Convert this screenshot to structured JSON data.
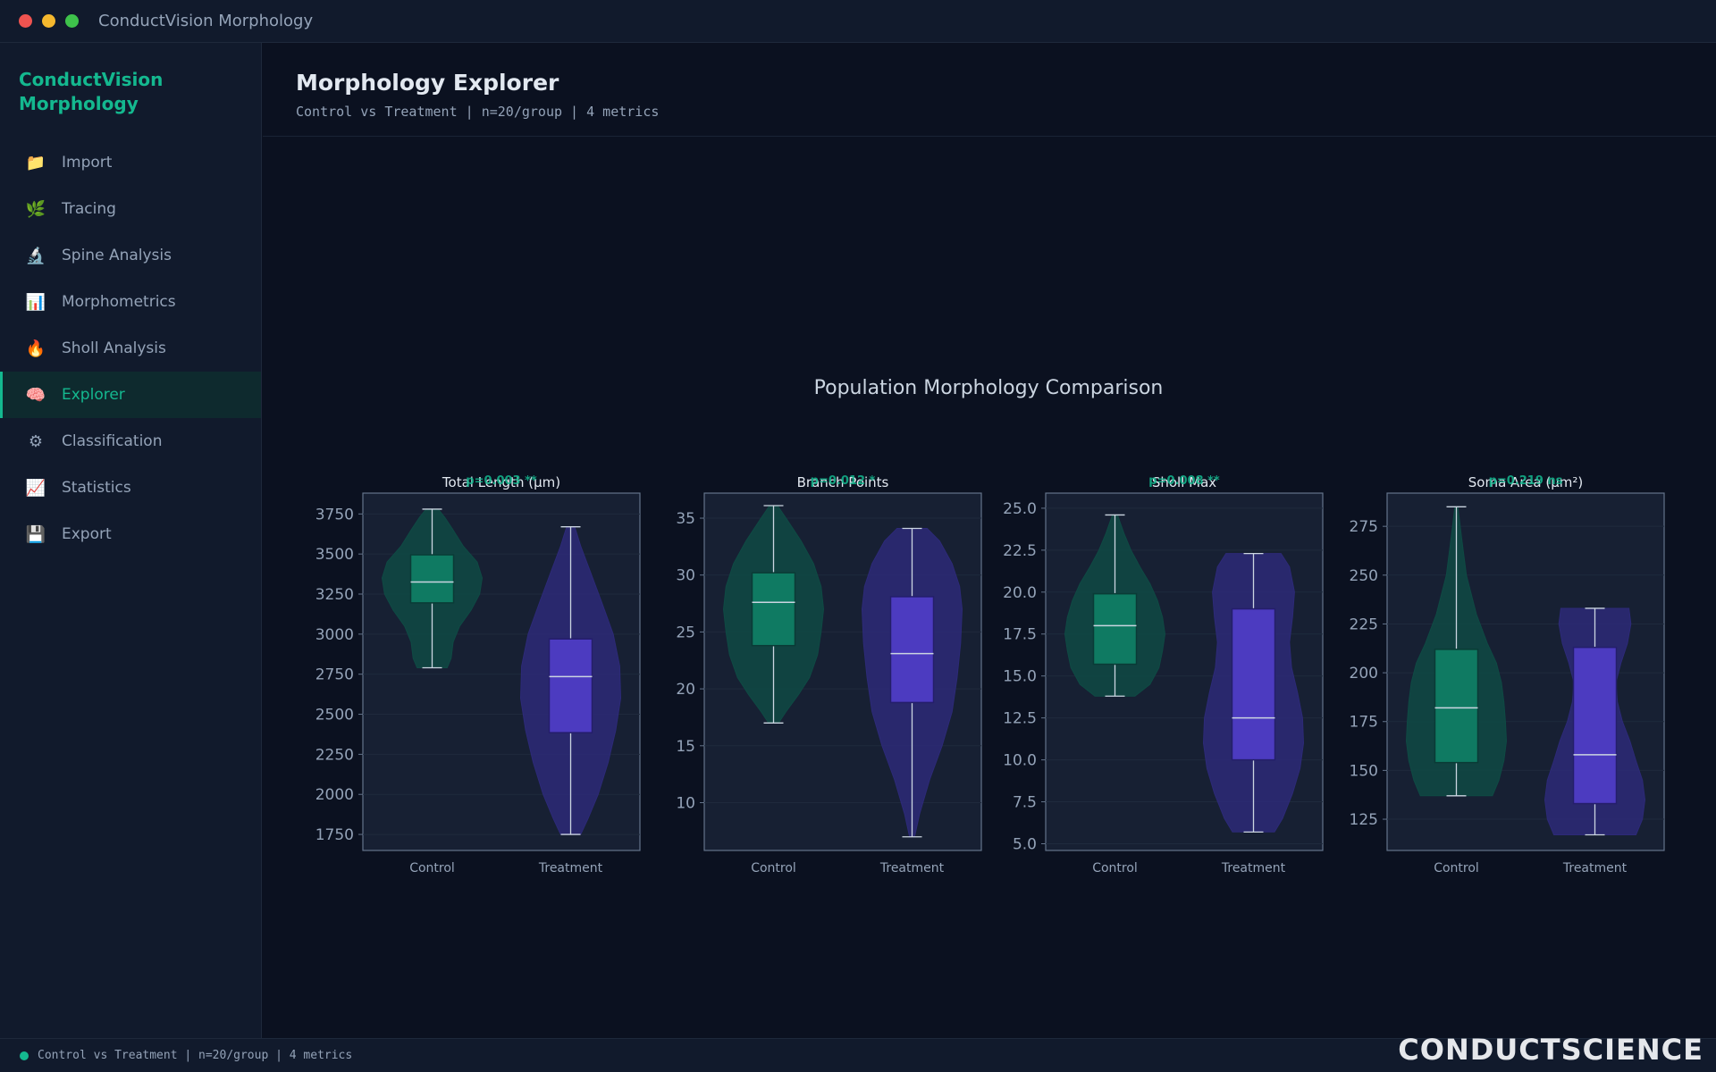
{
  "window": {
    "title": "ConductVision Morphology"
  },
  "sidebar": {
    "brand": "ConductVision Morphology",
    "items": [
      {
        "label": "Import",
        "icon": "folder-icon",
        "glyph": "📁",
        "active": false
      },
      {
        "label": "Tracing",
        "icon": "seedling-icon",
        "glyph": "🌿",
        "active": false
      },
      {
        "label": "Spine Analysis",
        "icon": "microscope-icon",
        "glyph": "🔬",
        "active": false
      },
      {
        "label": "Morphometrics",
        "icon": "bar-chart-icon",
        "glyph": "📊",
        "active": false
      },
      {
        "label": "Sholl Analysis",
        "icon": "fire-icon",
        "glyph": "🔥",
        "active": false
      },
      {
        "label": "Explorer",
        "icon": "brain-icon",
        "glyph": "🧠",
        "active": true
      },
      {
        "label": "Classification",
        "icon": "gear-icon",
        "glyph": "⚙",
        "active": false
      },
      {
        "label": "Statistics",
        "icon": "line-chart-icon",
        "glyph": "📈",
        "active": false
      },
      {
        "label": "Export",
        "icon": "floppy-disk-icon",
        "glyph": "💾",
        "active": false
      }
    ]
  },
  "header": {
    "title": "Morphology Explorer",
    "subtitle": "Control vs Treatment | n=20/group | 4 metrics"
  },
  "statusbar": {
    "text": "Control vs Treatment | n=20/group | 4 metrics"
  },
  "logo": {
    "text": "CONDUCTSCIENCE"
  },
  "colors": {
    "control": "#0f7a62",
    "control_violin": "#0f4a44",
    "treatment": "#4c3bc0",
    "treatment_violin": "#2d2a78",
    "accent": "#14b88f",
    "panel_bg": "#172033"
  },
  "chart_data": {
    "type": "violin",
    "title": "Population Morphology Comparison",
    "categories": [
      "Control",
      "Treatment"
    ],
    "panels": [
      {
        "title": "Total Length (μm)",
        "pvalue": "p=0.003 **",
        "ylim": [
          1650,
          3880
        ],
        "yticks": [
          1750,
          2000,
          2250,
          2500,
          2750,
          3000,
          3250,
          3500,
          3750
        ],
        "tick_labels": [
          "1750",
          "2000",
          "2250",
          "2500",
          "2750",
          "3000",
          "3250",
          "3500",
          "3750"
        ],
        "groups": [
          {
            "name": "Control",
            "min": 2790,
            "q1": 3195,
            "median": 3325,
            "q3": 3495,
            "max": 3780,
            "density": [
              [
                2790,
                0.3
              ],
              [
                2850,
                0.38
              ],
              [
                2950,
                0.42
              ],
              [
                3050,
                0.55
              ],
              [
                3150,
                0.78
              ],
              [
                3250,
                0.95
              ],
              [
                3350,
                1.0
              ],
              [
                3450,
                0.9
              ],
              [
                3550,
                0.62
              ],
              [
                3650,
                0.42
              ],
              [
                3730,
                0.25
              ],
              [
                3780,
                0.12
              ]
            ]
          },
          {
            "name": "Treatment",
            "min": 1750,
            "q1": 2385,
            "median": 2735,
            "q3": 2970,
            "max": 3670,
            "density": [
              [
                1750,
                0.2
              ],
              [
                1850,
                0.35
              ],
              [
                2000,
                0.55
              ],
              [
                2200,
                0.75
              ],
              [
                2400,
                0.9
              ],
              [
                2600,
                1.0
              ],
              [
                2800,
                0.98
              ],
              [
                3000,
                0.85
              ],
              [
                3200,
                0.62
              ],
              [
                3400,
                0.38
              ],
              [
                3550,
                0.2
              ],
              [
                3670,
                0.08
              ]
            ]
          }
        ]
      },
      {
        "title": "Branch Points",
        "pvalue": "p=0.012 *",
        "ylim": [
          5.8,
          37.2
        ],
        "yticks": [
          10,
          15,
          20,
          25,
          30,
          35
        ],
        "tick_labels": [
          "10",
          "15",
          "20",
          "25",
          "30",
          "35"
        ],
        "groups": [
          {
            "name": "Control",
            "min": 17,
            "q1": 23.8,
            "median": 27.6,
            "q3": 30.2,
            "max": 36.1,
            "density": [
              [
                17,
                0.1
              ],
              [
                18,
                0.25
              ],
              [
                19.5,
                0.5
              ],
              [
                21,
                0.72
              ],
              [
                23,
                0.88
              ],
              [
                25,
                0.95
              ],
              [
                27,
                1.0
              ],
              [
                29,
                0.95
              ],
              [
                31,
                0.8
              ],
              [
                33,
                0.55
              ],
              [
                35,
                0.25
              ],
              [
                36.1,
                0.08
              ]
            ]
          },
          {
            "name": "Treatment",
            "min": 7,
            "q1": 18.8,
            "median": 23.1,
            "q3": 28.1,
            "max": 34.1,
            "density": [
              [
                7,
                0.05
              ],
              [
                9,
                0.15
              ],
              [
                12,
                0.35
              ],
              [
                15,
                0.6
              ],
              [
                18,
                0.8
              ],
              [
                21,
                0.9
              ],
              [
                24,
                0.97
              ],
              [
                27,
                1.0
              ],
              [
                29,
                0.95
              ],
              [
                31,
                0.8
              ],
              [
                33,
                0.55
              ],
              [
                34.1,
                0.3
              ]
            ]
          }
        ]
      },
      {
        "title": "Sholl Max",
        "pvalue": "p=0.008 **",
        "ylim": [
          4.6,
          25.9
        ],
        "yticks": [
          5.0,
          7.5,
          10.0,
          12.5,
          15.0,
          17.5,
          20.0,
          22.5,
          25.0
        ],
        "tick_labels": [
          "5.0",
          "7.5",
          "10.0",
          "12.5",
          "15.0",
          "17.5",
          "20.0",
          "22.5",
          "25.0"
        ],
        "groups": [
          {
            "name": "Control",
            "min": 13.8,
            "q1": 15.7,
            "median": 18.0,
            "q3": 19.9,
            "max": 24.6,
            "density": [
              [
                13.8,
                0.4
              ],
              [
                14.5,
                0.7
              ],
              [
                15.5,
                0.88
              ],
              [
                16.5,
                0.95
              ],
              [
                17.5,
                1.0
              ],
              [
                18.5,
                0.95
              ],
              [
                19.5,
                0.85
              ],
              [
                20.5,
                0.7
              ],
              [
                21.5,
                0.5
              ],
              [
                22.5,
                0.32
              ],
              [
                23.5,
                0.18
              ],
              [
                24.6,
                0.05
              ]
            ]
          },
          {
            "name": "Treatment",
            "min": 5.7,
            "q1": 10.0,
            "median": 12.5,
            "q3": 19.0,
            "max": 22.3,
            "density": [
              [
                5.7,
                0.42
              ],
              [
                6.5,
                0.58
              ],
              [
                8,
                0.78
              ],
              [
                9.5,
                0.93
              ],
              [
                11,
                1.0
              ],
              [
                12.5,
                0.98
              ],
              [
                14,
                0.88
              ],
              [
                15.5,
                0.76
              ],
              [
                17,
                0.72
              ],
              [
                18.5,
                0.78
              ],
              [
                20,
                0.82
              ],
              [
                21.5,
                0.72
              ],
              [
                22.3,
                0.55
              ]
            ]
          }
        ]
      },
      {
        "title": "Soma Area (μm²)",
        "pvalue": "p=0.219 ns",
        "ylim": [
          109,
          292
        ],
        "yticks": [
          125,
          150,
          175,
          200,
          225,
          250,
          275
        ],
        "tick_labels": [
          "125",
          "150",
          "175",
          "200",
          "225",
          "250",
          "275"
        ],
        "groups": [
          {
            "name": "Control",
            "min": 137,
            "q1": 154,
            "median": 182,
            "q3": 212,
            "max": 285,
            "density": [
              [
                137,
                0.72
              ],
              [
                145,
                0.85
              ],
              [
                155,
                0.95
              ],
              [
                165,
                1.0
              ],
              [
                175,
                0.98
              ],
              [
                185,
                0.95
              ],
              [
                195,
                0.9
              ],
              [
                205,
                0.8
              ],
              [
                215,
                0.62
              ],
              [
                230,
                0.4
              ],
              [
                250,
                0.2
              ],
              [
                270,
                0.1
              ],
              [
                285,
                0.03
              ]
            ]
          },
          {
            "name": "Treatment",
            "min": 117,
            "q1": 133,
            "median": 158,
            "q3": 213,
            "max": 233,
            "density": [
              [
                117,
                0.82
              ],
              [
                125,
                0.95
              ],
              [
                135,
                1.0
              ],
              [
                145,
                0.95
              ],
              [
                155,
                0.82
              ],
              [
                165,
                0.7
              ],
              [
                175,
                0.55
              ],
              [
                185,
                0.45
              ],
              [
                195,
                0.42
              ],
              [
                205,
                0.52
              ],
              [
                215,
                0.65
              ],
              [
                225,
                0.72
              ],
              [
                233,
                0.68
              ]
            ]
          }
        ]
      }
    ]
  }
}
